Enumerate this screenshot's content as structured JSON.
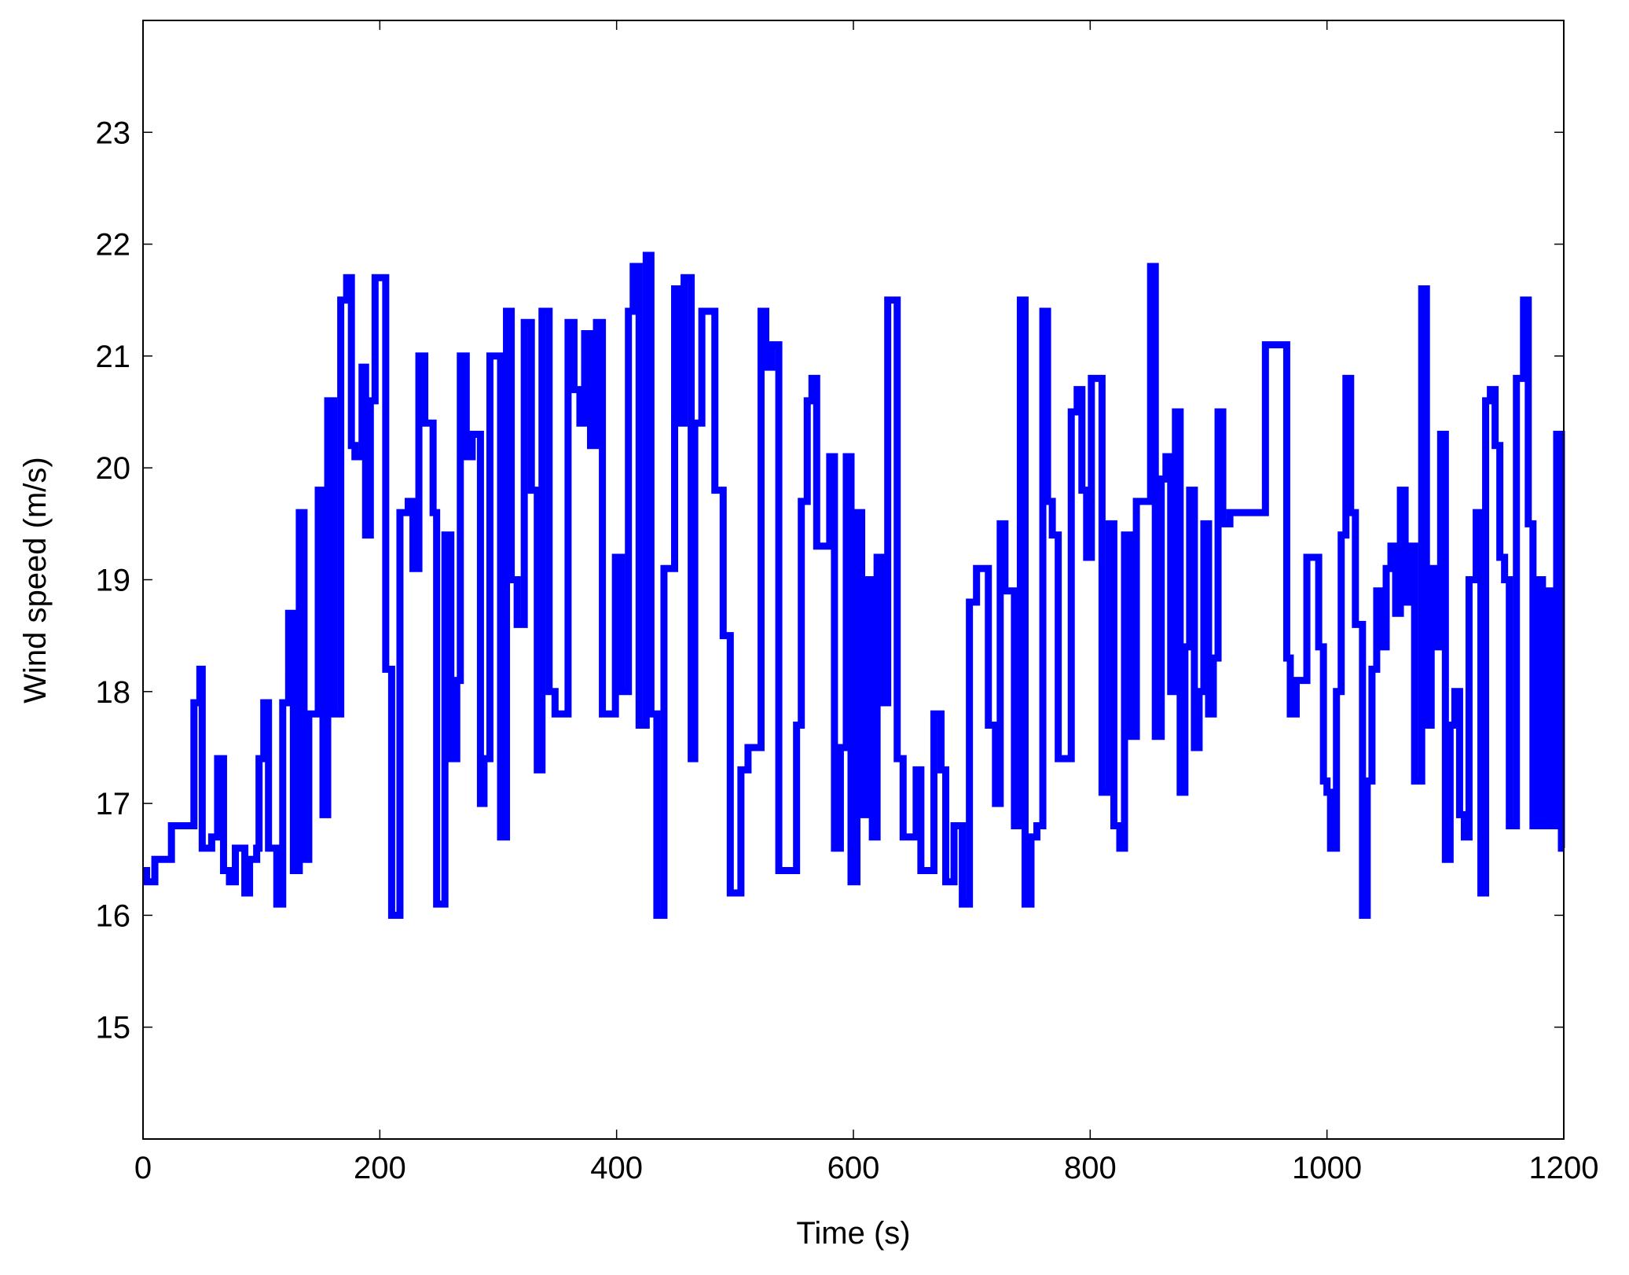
{
  "chart_data": {
    "type": "line",
    "step": "post",
    "xlabel": "Time (s)",
    "ylabel": "Wind speed (m/s)",
    "xlim": [
      0,
      1200
    ],
    "xticks": [
      0,
      200,
      400,
      600,
      800,
      1000,
      1200
    ],
    "ylim": [
      14,
      24
    ],
    "yticks": [
      15,
      16,
      17,
      18,
      19,
      20,
      21,
      22,
      23
    ],
    "grid": false,
    "series": [
      {
        "name": "Wind speed",
        "color": "#0000ff",
        "x": [
          0,
          3,
          10,
          24,
          43,
          48,
          50,
          58,
          63,
          68,
          73,
          78,
          86,
          90,
          96,
          98,
          102,
          106,
          113,
          118,
          123,
          127,
          132,
          136,
          140,
          148,
          152,
          156,
          161,
          167,
          172,
          176,
          179,
          185,
          188,
          192,
          196,
          205,
          210,
          217,
          224,
          228,
          233,
          238,
          245,
          248,
          255,
          260,
          265,
          268,
          273,
          278,
          285,
          288,
          293,
          302,
          307,
          311,
          316,
          322,
          328,
          333,
          337,
          343,
          348,
          359,
          364,
          369,
          373,
          378,
          383,
          388,
          399,
          404,
          410,
          414,
          419,
          425,
          429,
          434,
          440,
          449,
          453,
          457,
          463,
          466,
          472,
          483,
          490,
          496,
          505,
          511,
          522,
          526,
          531,
          537,
          552,
          556,
          561,
          565,
          569,
          580,
          584,
          589,
          594,
          598,
          603,
          607,
          611,
          616,
          620,
          624,
          629,
          637,
          642,
          653,
          657,
          668,
          674,
          678,
          685,
          692,
          698,
          704,
          714,
          720,
          724,
          728,
          736,
          741,
          745,
          750,
          755,
          760,
          764,
          768,
          773,
          784,
          789,
          793,
          797,
          801,
          810,
          816,
          820,
          825,
          829,
          834,
          839,
          851,
          855,
          860,
          864,
          868,
          872,
          876,
          880,
          884,
          888,
          892,
          896,
          900,
          904,
          908,
          912,
          918,
          948,
          966,
          969,
          974,
          983,
          993,
          997,
          1000,
          1003,
          1008,
          1012,
          1016,
          1020,
          1024,
          1030,
          1034,
          1038,
          1042,
          1046,
          1050,
          1054,
          1058,
          1062,
          1066,
          1070,
          1074,
          1080,
          1084,
          1088,
          1092,
          1096,
          1100,
          1104,
          1108,
          1112,
          1116,
          1120,
          1126,
          1130,
          1134,
          1138,
          1142,
          1146,
          1150,
          1154,
          1160,
          1166,
          1170,
          1174,
          1178,
          1182,
          1186,
          1190,
          1194,
          1198,
          1200
        ],
        "values": [
          16.4,
          16.3,
          16.5,
          16.8,
          17.9,
          18.2,
          16.6,
          16.7,
          17.4,
          16.4,
          16.3,
          16.6,
          16.2,
          16.5,
          16.6,
          17.4,
          17.9,
          16.6,
          16.1,
          17.9,
          18.7,
          16.4,
          19.6,
          16.5,
          17.8,
          19.8,
          16.9,
          20.6,
          17.8,
          21.5,
          21.7,
          20.2,
          20.1,
          20.9,
          19.4,
          20.6,
          21.7,
          18.2,
          16.0,
          19.6,
          19.7,
          19.1,
          21.0,
          20.4,
          19.6,
          16.1,
          19.4,
          17.4,
          18.1,
          21.0,
          20.1,
          20.3,
          17.0,
          17.4,
          21.0,
          16.7,
          21.4,
          19.0,
          18.6,
          21.3,
          19.8,
          17.3,
          21.4,
          18.0,
          17.8,
          21.3,
          20.7,
          20.4,
          21.2,
          20.2,
          21.3,
          17.8,
          19.2,
          18.0,
          21.4,
          21.8,
          17.7,
          21.9,
          17.8,
          16.0,
          19.1,
          21.6,
          20.4,
          21.7,
          17.4,
          20.4,
          21.4,
          19.8,
          18.5,
          16.2,
          17.3,
          17.5,
          21.4,
          20.9,
          21.1,
          16.4,
          17.7,
          19.7,
          20.6,
          20.8,
          19.3,
          20.1,
          16.6,
          17.5,
          20.1,
          16.3,
          19.6,
          16.9,
          19.0,
          16.7,
          19.2,
          17.9,
          21.5,
          17.4,
          16.7,
          17.3,
          16.4,
          17.8,
          17.3,
          16.3,
          16.8,
          16.1,
          18.8,
          19.1,
          17.7,
          17.0,
          19.5,
          18.9,
          16.8,
          21.5,
          16.1,
          16.7,
          16.8,
          21.4,
          19.7,
          19.4,
          17.4,
          20.5,
          20.7,
          19.8,
          19.2,
          20.8,
          17.1,
          19.5,
          16.8,
          16.6,
          19.4,
          17.6,
          19.7,
          21.8,
          17.6,
          19.9,
          20.1,
          18.0,
          20.5,
          17.1,
          18.4,
          19.8,
          17.5,
          18.0,
          19.5,
          17.8,
          18.3,
          20.5,
          19.5,
          19.6,
          21.1,
          18.3,
          17.8,
          18.1,
          19.2,
          18.4,
          17.2,
          17.1,
          16.6,
          18.0,
          19.4,
          20.8,
          19.6,
          18.6,
          16.0,
          17.2,
          18.2,
          18.9,
          18.4,
          19.1,
          19.3,
          18.7,
          19.8,
          18.8,
          19.3,
          17.2,
          21.6,
          17.7,
          19.1,
          18.4,
          20.3,
          16.5,
          17.7,
          18.0,
          16.9,
          16.7,
          19.0,
          19.6,
          16.2,
          20.6,
          20.7,
          20.2,
          19.2,
          19.0,
          16.8,
          20.8,
          21.5,
          19.5,
          16.8,
          19.0,
          16.8,
          18.9,
          16.8,
          20.3,
          16.6,
          16.6
        ]
      }
    ]
  }
}
